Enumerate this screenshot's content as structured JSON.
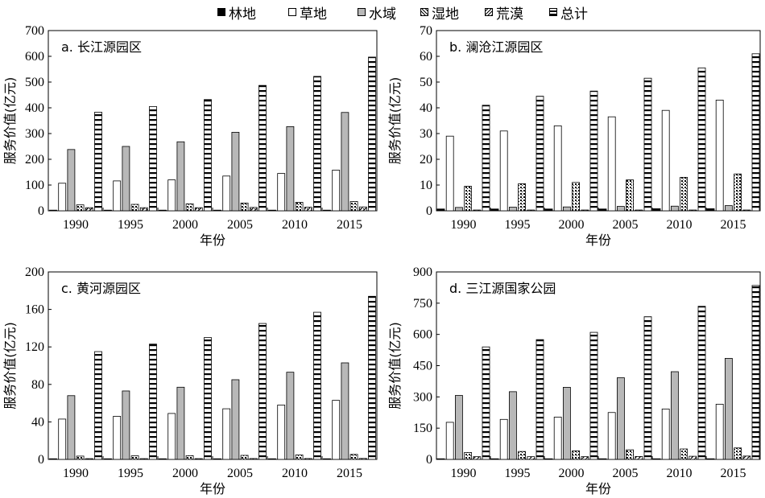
{
  "legend": [
    {
      "name": "林地",
      "key": "forest"
    },
    {
      "name": "草地",
      "key": "grass"
    },
    {
      "name": "水域",
      "key": "water"
    },
    {
      "name": "湿地",
      "key": "wetland"
    },
    {
      "name": "荒漠",
      "key": "desert"
    },
    {
      "name": "总计",
      "key": "total"
    }
  ],
  "chart_data": [
    {
      "type": "bar",
      "title": "a. 长江源园区",
      "xlabel": "年份",
      "ylabel": "服务价值(亿元)",
      "ylim": [
        0,
        700
      ],
      "yticks": [
        0,
        100,
        200,
        300,
        400,
        500,
        600,
        700
      ],
      "categories": [
        "1990",
        "1995",
        "2000",
        "2005",
        "2010",
        "2015"
      ],
      "series": [
        {
          "name": "林地",
          "values": [
            1,
            1,
            1,
            1,
            1,
            1
          ]
        },
        {
          "name": "草地",
          "values": [
            107,
            116,
            120,
            135,
            145,
            158
          ]
        },
        {
          "name": "水域",
          "values": [
            238,
            250,
            268,
            305,
            327,
            382
          ]
        },
        {
          "name": "湿地",
          "values": [
            23,
            25,
            27,
            30,
            33,
            36
          ]
        },
        {
          "name": "荒漠",
          "values": [
            12,
            12,
            12,
            13,
            14,
            15
          ]
        },
        {
          "name": "总计",
          "values": [
            383,
            405,
            432,
            487,
            522,
            597
          ]
        }
      ]
    },
    {
      "type": "bar",
      "title": "b. 澜沧江源园区",
      "xlabel": "年份",
      "ylabel": "服务价值(亿元)",
      "ylim": [
        0,
        70
      ],
      "yticks": [
        0,
        10,
        20,
        30,
        40,
        50,
        60,
        70
      ],
      "categories": [
        "1990",
        "1995",
        "2000",
        "2005",
        "2010",
        "2015"
      ],
      "series": [
        {
          "name": "林地",
          "values": [
            0.7,
            0.7,
            0.7,
            0.7,
            0.8,
            0.8
          ]
        },
        {
          "name": "草地",
          "values": [
            29,
            31,
            33,
            36.5,
            39,
            43
          ]
        },
        {
          "name": "水域",
          "values": [
            1.3,
            1.4,
            1.5,
            1.7,
            1.8,
            2.0
          ]
        },
        {
          "name": "湿地",
          "values": [
            9.5,
            10.5,
            11,
            12,
            13,
            14.3
          ]
        },
        {
          "name": "荒漠",
          "values": [
            0.3,
            0.3,
            0.3,
            0.3,
            0.3,
            0.3
          ]
        },
        {
          "name": "总计",
          "values": [
            41,
            44.5,
            46.5,
            51.5,
            55.5,
            61
          ]
        }
      ]
    },
    {
      "type": "bar",
      "title": "c. 黄河源园区",
      "xlabel": "年份",
      "ylabel": "服务价值(亿元)",
      "ylim": [
        0,
        200
      ],
      "yticks": [
        0,
        40,
        80,
        120,
        160,
        200
      ],
      "categories": [
        "1990",
        "1995",
        "2000",
        "2005",
        "2010",
        "2015"
      ],
      "series": [
        {
          "name": "林地",
          "values": [
            0.3,
            0.3,
            0.3,
            0.3,
            0.3,
            0.3
          ]
        },
        {
          "name": "草地",
          "values": [
            43,
            46,
            49,
            54,
            58,
            63
          ]
        },
        {
          "name": "水域",
          "values": [
            68,
            73,
            77,
            85,
            93,
            103
          ]
        },
        {
          "name": "湿地",
          "values": [
            3.5,
            3.8,
            4,
            4.3,
            4.7,
            5.3
          ]
        },
        {
          "name": "荒漠",
          "values": [
            0.8,
            0.8,
            0.8,
            0.9,
            0.9,
            1.0
          ]
        },
        {
          "name": "总计",
          "values": [
            115,
            123,
            130,
            145,
            157,
            174
          ]
        }
      ]
    },
    {
      "type": "bar",
      "title": "d. 三江源国家公园",
      "xlabel": "年份",
      "ylabel": "服务价值(亿元)",
      "ylim": [
        0,
        900
      ],
      "yticks": [
        0,
        150,
        300,
        450,
        600,
        750,
        900
      ],
      "categories": [
        "1990",
        "1995",
        "2000",
        "2005",
        "2010",
        "2015"
      ],
      "series": [
        {
          "name": "林地",
          "values": [
            1.5,
            1.5,
            1.5,
            1.5,
            1.5,
            1.5
          ]
        },
        {
          "name": "草地",
          "values": [
            178,
            192,
            203,
            225,
            242,
            265
          ]
        },
        {
          "name": "水域",
          "values": [
            307,
            325,
            346,
            392,
            421,
            485
          ]
        },
        {
          "name": "湿地",
          "values": [
            33,
            38,
            41,
            46,
            50,
            55
          ]
        },
        {
          "name": "荒漠",
          "values": [
            13,
            13,
            13,
            14,
            15,
            16
          ]
        },
        {
          "name": "总计",
          "values": [
            540,
            575,
            610,
            685,
            735,
            835
          ]
        }
      ]
    }
  ]
}
